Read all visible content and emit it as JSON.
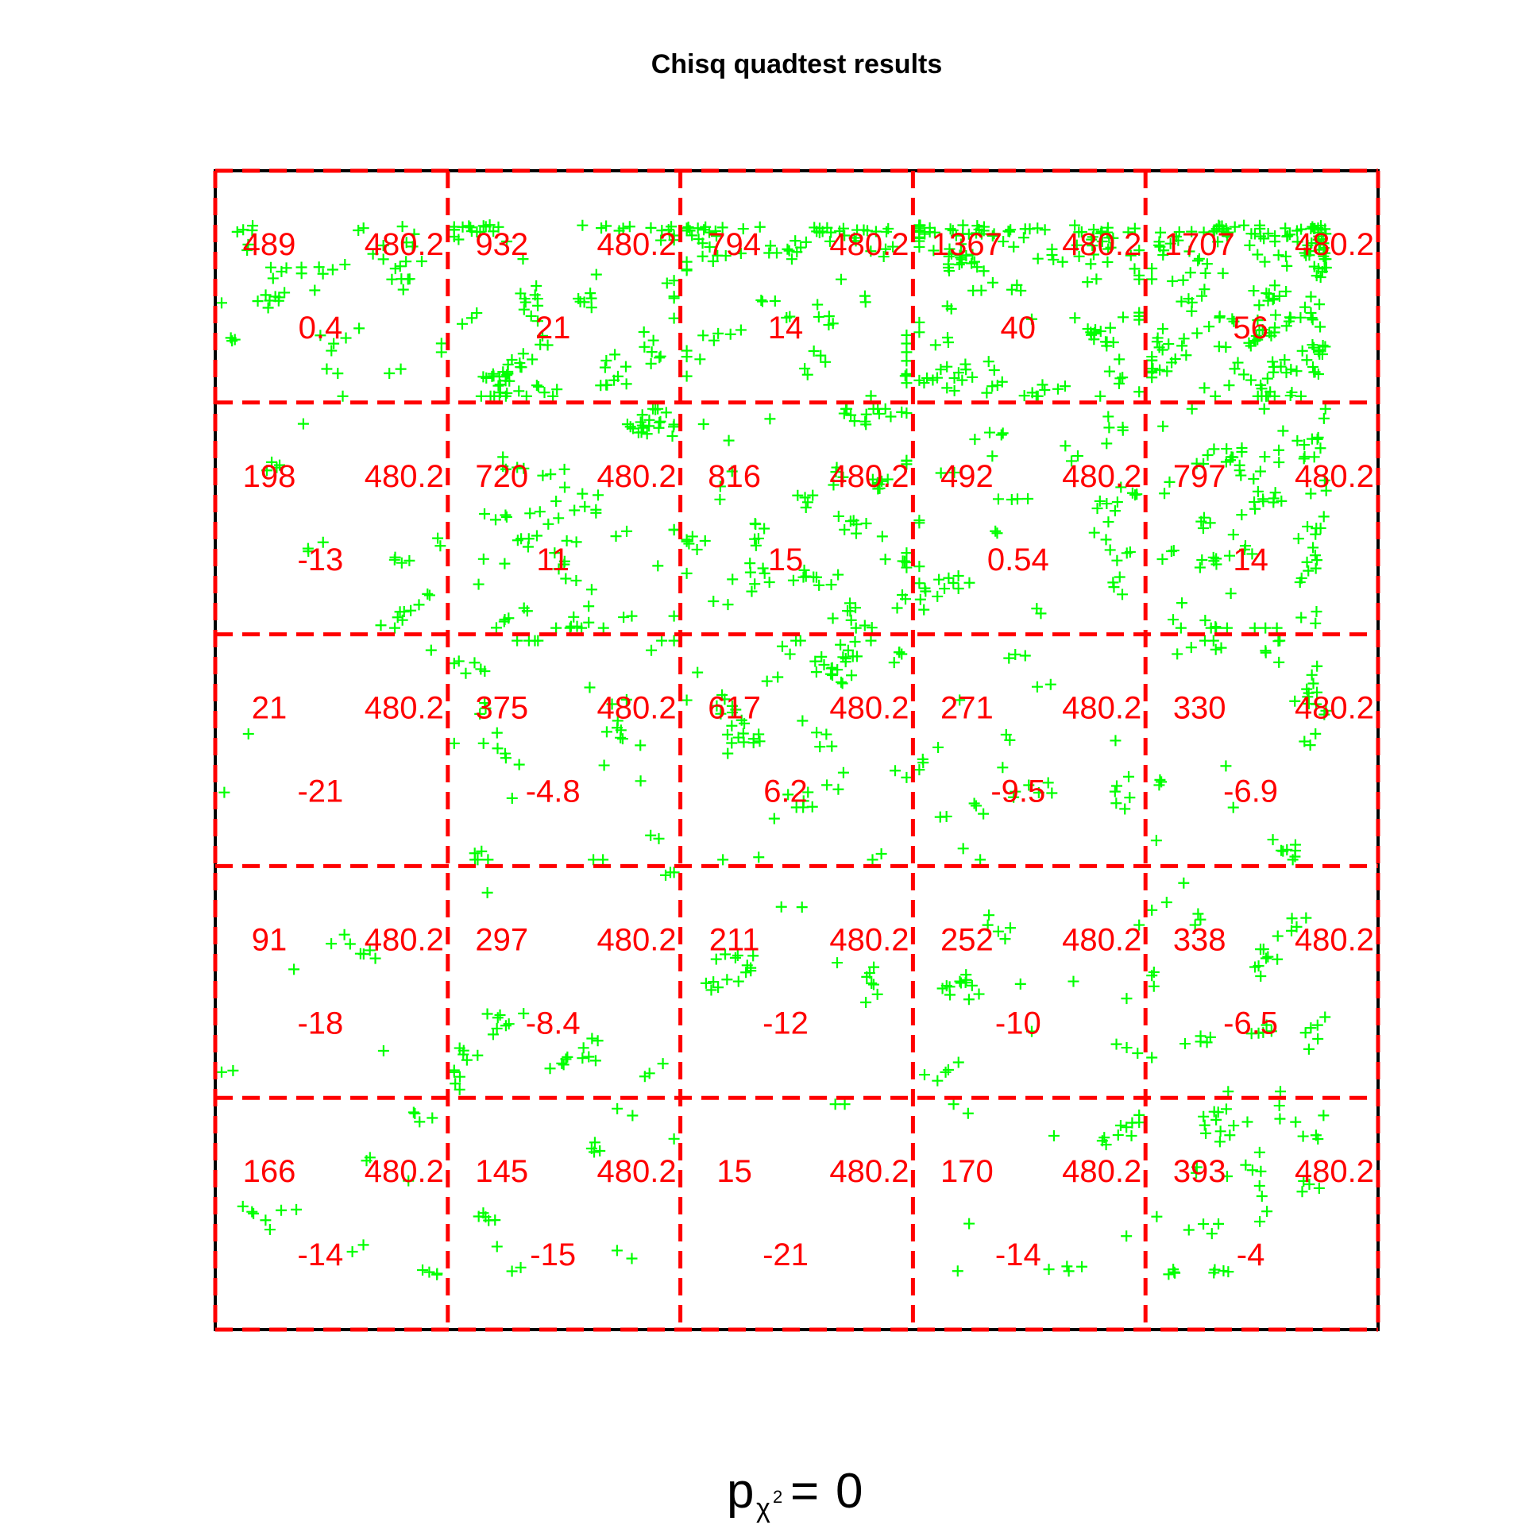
{
  "chart_data": {
    "type": "scatter",
    "title": "Chisq quadtest results",
    "grid": {
      "rows": 5,
      "cols": 5,
      "line_color": "#ff0000",
      "line_style": "dashed"
    },
    "point_color": "#00ff00",
    "point_marker": "plus",
    "cells": [
      [
        {
          "observed": "489",
          "expected": "480.2",
          "residual": "0.4"
        },
        {
          "observed": "932",
          "expected": "480.2",
          "residual": "21"
        },
        {
          "observed": "794",
          "expected": "480.2",
          "residual": "14"
        },
        {
          "observed": "1367",
          "expected": "480.2",
          "residual": "40"
        },
        {
          "observed": "1707",
          "expected": "480.2",
          "residual": "56"
        }
      ],
      [
        {
          "observed": "198",
          "expected": "480.2",
          "residual": "-13"
        },
        {
          "observed": "720",
          "expected": "480.2",
          "residual": "11"
        },
        {
          "observed": "816",
          "expected": "480.2",
          "residual": "15"
        },
        {
          "observed": "492",
          "expected": "480.2",
          "residual": "0.54"
        },
        {
          "observed": "797",
          "expected": "480.2",
          "residual": "14"
        }
      ],
      [
        {
          "observed": "21",
          "expected": "480.2",
          "residual": "-21"
        },
        {
          "observed": "375",
          "expected": "480.2",
          "residual": "-4.8"
        },
        {
          "observed": "617",
          "expected": "480.2",
          "residual": "6.2"
        },
        {
          "observed": "271",
          "expected": "480.2",
          "residual": "-9.5"
        },
        {
          "observed": "330",
          "expected": "480.2",
          "residual": "-6.9"
        }
      ],
      [
        {
          "observed": "91",
          "expected": "480.2",
          "residual": "-18"
        },
        {
          "observed": "297",
          "expected": "480.2",
          "residual": "-8.4"
        },
        {
          "observed": "211",
          "expected": "480.2",
          "residual": "-12"
        },
        {
          "observed": "252",
          "expected": "480.2",
          "residual": "-10"
        },
        {
          "observed": "338",
          "expected": "480.2",
          "residual": "-6.5"
        }
      ],
      [
        {
          "observed": "166",
          "expected": "480.2",
          "residual": "-14"
        },
        {
          "observed": "145",
          "expected": "480.2",
          "residual": "-15"
        },
        {
          "observed": "15",
          "expected": "480.2",
          "residual": "-21"
        },
        {
          "observed": "170",
          "expected": "480.2",
          "residual": "-14"
        },
        {
          "observed": "393",
          "expected": "480.2",
          "residual": "-4"
        }
      ]
    ],
    "p_value": {
      "symbol": "p",
      "subscript": "χ",
      "superscript": "2",
      "equals": "=",
      "value": "0"
    }
  }
}
